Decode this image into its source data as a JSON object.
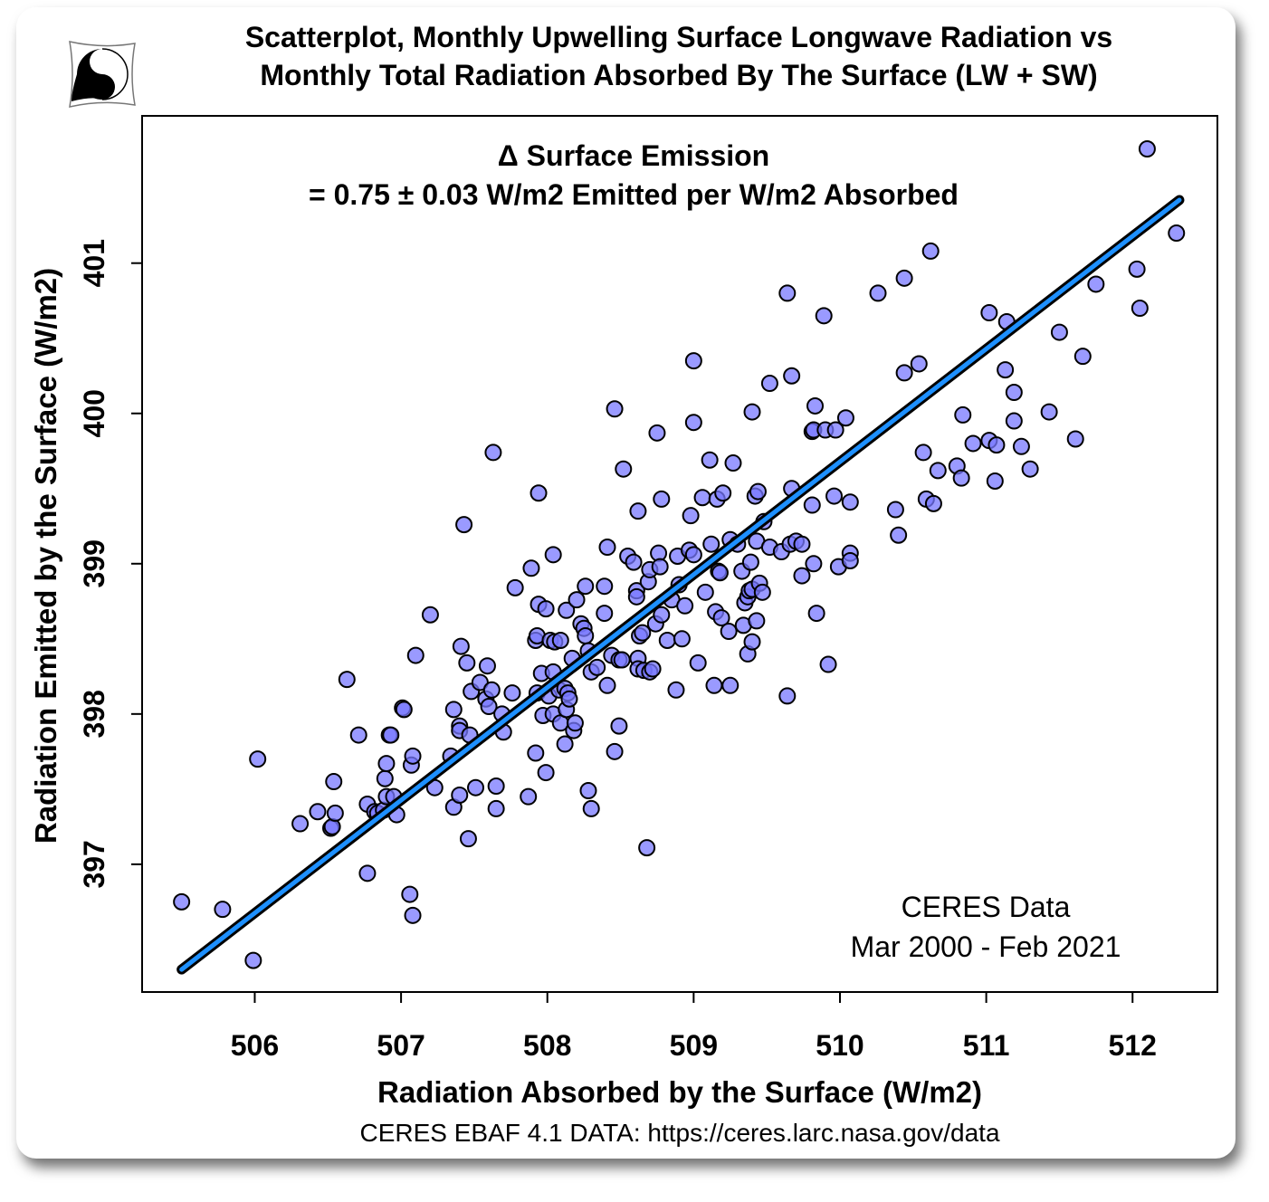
{
  "chart_data": {
    "type": "scatter",
    "title": [
      "Scatterplot, Monthly Upwelling Surface Longwave Radiation vs",
      "Monthly Total Radiation Absorbed By The Surface (LW + SW)"
    ],
    "annotation": [
      "Δ Surface Emission",
      "= 0.75 ± 0.03 W/m2 Emitted per W/m2 Absorbed"
    ],
    "data_note": [
      "CERES Data",
      "Mar 2000 - Feb 2021"
    ],
    "source": "CERES EBAF 4.1 DATA: https://ceres.larc.nasa.gov/data",
    "xlabel": "Radiation Absorbed by the Surface (W/m2)",
    "ylabel": "Radiation Emitted by the Surface (W/m2)",
    "xlim": [
      505.23,
      512.58
    ],
    "ylim": [
      396.15,
      401.98
    ],
    "xticks": [
      "506",
      "507",
      "508",
      "509",
      "510",
      "511",
      "512"
    ],
    "yticks": [
      "397",
      "398",
      "399",
      "400",
      "401"
    ],
    "grid": false,
    "colors": {
      "point_fill": "#7878ff",
      "point_stroke": "#000000",
      "fit_line": "#1e90ff",
      "fit_outline": "#000000"
    },
    "fit_line": {
      "slope": 0.75,
      "points": [
        [
          505.5,
          396.3
        ],
        [
          512.32,
          401.42
        ]
      ]
    },
    "points": [
      [
        505.5,
        396.75
      ],
      [
        505.78,
        396.7
      ],
      [
        505.99,
        396.36
      ],
      [
        506.02,
        397.7
      ],
      [
        506.31,
        397.27
      ],
      [
        506.43,
        397.35
      ],
      [
        506.52,
        397.24
      ],
      [
        506.53,
        397.25
      ],
      [
        506.54,
        397.55
      ],
      [
        506.55,
        397.34
      ],
      [
        506.63,
        398.23
      ],
      [
        506.71,
        397.86
      ],
      [
        506.77,
        397.4
      ],
      [
        506.77,
        396.94
      ],
      [
        506.82,
        397.35
      ],
      [
        506.84,
        397.34
      ],
      [
        506.88,
        397.36
      ],
      [
        506.89,
        397.57
      ],
      [
        506.9,
        397.67
      ],
      [
        506.9,
        397.45
      ],
      [
        506.92,
        397.86
      ],
      [
        506.93,
        397.86
      ],
      [
        506.95,
        397.45
      ],
      [
        506.97,
        397.33
      ],
      [
        507.01,
        398.04
      ],
      [
        507.02,
        398.03
      ],
      [
        507.06,
        396.8
      ],
      [
        507.08,
        396.66
      ],
      [
        507.07,
        397.66
      ],
      [
        507.08,
        397.72
      ],
      [
        507.1,
        398.39
      ],
      [
        507.2,
        398.66
      ],
      [
        507.23,
        397.51
      ],
      [
        507.34,
        397.72
      ],
      [
        507.36,
        398.03
      ],
      [
        507.36,
        397.38
      ],
      [
        507.4,
        397.92
      ],
      [
        507.4,
        397.89
      ],
      [
        507.4,
        397.46
      ],
      [
        507.41,
        398.45
      ],
      [
        507.43,
        399.26
      ],
      [
        507.45,
        398.34
      ],
      [
        507.46,
        397.17
      ],
      [
        507.47,
        397.86
      ],
      [
        507.48,
        398.15
      ],
      [
        507.51,
        397.51
      ],
      [
        507.54,
        398.21
      ],
      [
        507.58,
        398.1
      ],
      [
        507.59,
        398.32
      ],
      [
        507.6,
        398.05
      ],
      [
        507.62,
        398.16
      ],
      [
        507.63,
        399.74
      ],
      [
        507.65,
        397.52
      ],
      [
        507.65,
        397.37
      ],
      [
        507.69,
        398.0
      ],
      [
        507.7,
        397.88
      ],
      [
        507.76,
        398.14
      ],
      [
        507.78,
        398.84
      ],
      [
        507.87,
        397.45
      ],
      [
        507.89,
        398.97
      ],
      [
        507.92,
        397.74
      ],
      [
        507.93,
        398.14
      ],
      [
        507.94,
        399.47
      ],
      [
        507.92,
        398.49
      ],
      [
        507.93,
        398.52
      ],
      [
        507.94,
        398.73
      ],
      [
        507.96,
        398.27
      ],
      [
        507.97,
        397.99
      ],
      [
        507.99,
        397.61
      ],
      [
        507.99,
        398.7
      ],
      [
        508.01,
        398.12
      ],
      [
        508.02,
        398.49
      ],
      [
        508.04,
        399.06
      ],
      [
        508.04,
        398.28
      ],
      [
        508.04,
        398.0
      ],
      [
        508.05,
        398.48
      ],
      [
        508.08,
        398.16
      ],
      [
        508.09,
        398.49
      ],
      [
        508.09,
        397.94
      ],
      [
        508.12,
        397.8
      ],
      [
        508.12,
        398.17
      ],
      [
        508.13,
        398.03
      ],
      [
        508.13,
        398.69
      ],
      [
        508.14,
        398.14
      ],
      [
        508.15,
        398.1
      ],
      [
        508.17,
        398.37
      ],
      [
        508.18,
        397.89
      ],
      [
        508.19,
        397.94
      ],
      [
        508.2,
        398.76
      ],
      [
        508.23,
        398.6
      ],
      [
        508.25,
        398.57
      ],
      [
        508.26,
        398.52
      ],
      [
        508.26,
        398.85
      ],
      [
        508.28,
        398.42
      ],
      [
        508.28,
        397.49
      ],
      [
        508.3,
        397.37
      ],
      [
        508.3,
        398.28
      ],
      [
        508.34,
        398.31
      ],
      [
        508.39,
        398.85
      ],
      [
        508.39,
        398.67
      ],
      [
        508.41,
        398.19
      ],
      [
        508.41,
        399.11
      ],
      [
        508.44,
        398.39
      ],
      [
        508.46,
        397.75
      ],
      [
        508.46,
        400.03
      ],
      [
        508.49,
        397.92
      ],
      [
        508.49,
        398.36
      ],
      [
        508.51,
        398.36
      ],
      [
        508.52,
        399.63
      ],
      [
        508.55,
        399.05
      ],
      [
        508.59,
        399.01
      ],
      [
        508.61,
        398.82
      ],
      [
        508.61,
        398.78
      ],
      [
        508.62,
        399.35
      ],
      [
        508.62,
        398.37
      ],
      [
        508.62,
        398.3
      ],
      [
        508.63,
        398.52
      ],
      [
        508.65,
        398.54
      ],
      [
        508.66,
        398.29
      ],
      [
        508.68,
        397.11
      ],
      [
        508.69,
        398.88
      ],
      [
        508.7,
        398.28
      ],
      [
        508.7,
        398.96
      ],
      [
        508.72,
        398.3
      ],
      [
        508.74,
        398.6
      ],
      [
        508.75,
        399.87
      ],
      [
        508.76,
        399.07
      ],
      [
        508.77,
        398.98
      ],
      [
        508.78,
        398.66
      ],
      [
        508.78,
        399.43
      ],
      [
        508.82,
        398.49
      ],
      [
        508.85,
        398.76
      ],
      [
        508.88,
        398.16
      ],
      [
        508.89,
        399.05
      ],
      [
        508.9,
        398.86
      ],
      [
        508.92,
        398.5
      ],
      [
        508.94,
        398.72
      ],
      [
        508.97,
        399.09
      ],
      [
        508.98,
        399.32
      ],
      [
        509.0,
        400.35
      ],
      [
        509.0,
        399.06
      ],
      [
        509.0,
        399.94
      ],
      [
        509.03,
        398.34
      ],
      [
        509.06,
        399.44
      ],
      [
        509.08,
        398.81
      ],
      [
        509.11,
        399.69
      ],
      [
        509.12,
        399.13
      ],
      [
        509.14,
        398.19
      ],
      [
        509.15,
        398.68
      ],
      [
        509.16,
        399.43
      ],
      [
        509.17,
        398.95
      ],
      [
        509.18,
        398.94
      ],
      [
        509.19,
        398.64
      ],
      [
        509.2,
        399.47
      ],
      [
        509.24,
        398.55
      ],
      [
        509.25,
        398.19
      ],
      [
        509.25,
        399.16
      ],
      [
        509.27,
        399.67
      ],
      [
        509.3,
        399.13
      ],
      [
        509.33,
        398.95
      ],
      [
        509.34,
        398.59
      ],
      [
        509.35,
        398.74
      ],
      [
        509.37,
        398.4
      ],
      [
        509.37,
        398.78
      ],
      [
        509.38,
        398.82
      ],
      [
        509.39,
        399.01
      ],
      [
        509.4,
        398.48
      ],
      [
        509.4,
        398.83
      ],
      [
        509.4,
        400.01
      ],
      [
        509.42,
        399.45
      ],
      [
        509.43,
        398.62
      ],
      [
        509.43,
        399.15
      ],
      [
        509.44,
        399.48
      ],
      [
        509.45,
        398.87
      ],
      [
        509.47,
        398.81
      ],
      [
        509.48,
        399.28
      ],
      [
        509.52,
        400.2
      ],
      [
        509.52,
        399.11
      ],
      [
        509.6,
        399.08
      ],
      [
        509.64,
        400.8
      ],
      [
        509.64,
        398.12
      ],
      [
        509.66,
        399.13
      ],
      [
        509.67,
        400.25
      ],
      [
        509.67,
        399.5
      ],
      [
        509.7,
        399.15
      ],
      [
        509.74,
        398.92
      ],
      [
        509.74,
        399.13
      ],
      [
        509.81,
        399.39
      ],
      [
        509.81,
        399.88
      ],
      [
        509.82,
        399.89
      ],
      [
        509.82,
        399.0
      ],
      [
        509.83,
        400.05
      ],
      [
        509.84,
        398.67
      ],
      [
        509.89,
        400.65
      ],
      [
        509.9,
        399.89
      ],
      [
        509.92,
        398.33
      ],
      [
        509.96,
        399.45
      ],
      [
        509.97,
        399.89
      ],
      [
        509.99,
        398.98
      ],
      [
        510.04,
        399.97
      ],
      [
        510.07,
        399.07
      ],
      [
        510.07,
        399.02
      ],
      [
        510.07,
        399.41
      ],
      [
        510.26,
        400.8
      ],
      [
        510.38,
        399.36
      ],
      [
        510.4,
        399.19
      ],
      [
        510.44,
        400.27
      ],
      [
        510.44,
        400.9
      ],
      [
        510.54,
        400.33
      ],
      [
        510.57,
        399.74
      ],
      [
        510.59,
        399.43
      ],
      [
        510.62,
        401.08
      ],
      [
        510.64,
        399.4
      ],
      [
        510.67,
        399.62
      ],
      [
        510.8,
        399.65
      ],
      [
        510.83,
        399.57
      ],
      [
        510.84,
        399.99
      ],
      [
        510.91,
        399.8
      ],
      [
        511.02,
        400.67
      ],
      [
        511.02,
        399.82
      ],
      [
        511.06,
        399.55
      ],
      [
        511.07,
        399.79
      ],
      [
        511.13,
        400.29
      ],
      [
        511.14,
        400.61
      ],
      [
        511.19,
        399.95
      ],
      [
        511.19,
        400.14
      ],
      [
        511.24,
        399.78
      ],
      [
        511.3,
        399.63
      ],
      [
        511.43,
        400.01
      ],
      [
        511.5,
        400.54
      ],
      [
        511.61,
        399.83
      ],
      [
        511.66,
        400.38
      ],
      [
        511.75,
        400.86
      ],
      [
        512.03,
        400.96
      ],
      [
        512.05,
        400.7
      ],
      [
        512.1,
        401.76
      ],
      [
        512.3,
        401.2
      ]
    ]
  }
}
